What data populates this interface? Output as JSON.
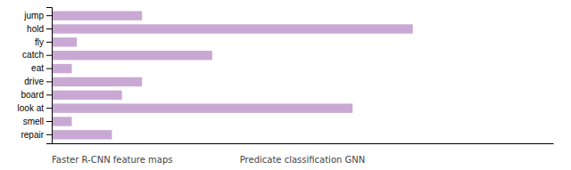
{
  "chart_data": {
    "type": "bar",
    "orientation": "horizontal",
    "categories": [
      "jump",
      "hold",
      "fly",
      "catch",
      "eat",
      "drive",
      "board",
      "look at",
      "smell",
      "repair"
    ],
    "values": [
      0.18,
      0.72,
      0.05,
      0.32,
      0.04,
      0.18,
      0.14,
      0.6,
      0.04,
      0.12
    ],
    "color": "#c9a9d4",
    "xlim": [
      0,
      1.0
    ],
    "tick_labels": "y",
    "grid": false,
    "annotations": [
      "Faster R-CNN feature maps",
      "Predicate classification GNN"
    ]
  }
}
